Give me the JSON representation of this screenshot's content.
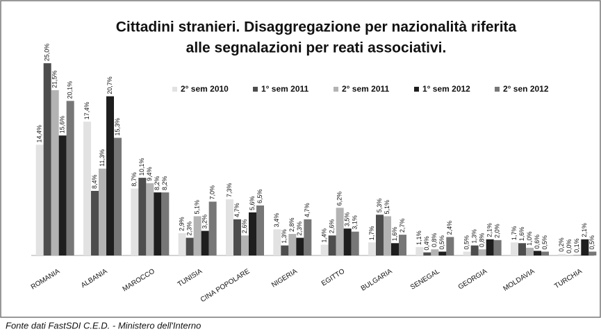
{
  "chart_data": {
    "type": "bar",
    "title": [
      "Cittadini stranieri. Disaggregazione per nazionalità riferita",
      "alle segnalazioni per reati associativi."
    ],
    "categories": [
      "ROMANIA",
      "ALBANIA",
      "MAROCCO",
      "TUNISIA",
      "CINA POPOLARE",
      "NIGERIA",
      "EGITTO",
      "BULGARIA",
      "SENEGAL",
      "GEORGIA",
      "MOLDAVIA",
      "TURCHIA"
    ],
    "series": [
      {
        "name": "2° sem 2010",
        "color": "#e2e2e2",
        "values": [
          14.4,
          17.4,
          8.7,
          2.9,
          7.3,
          3.4,
          1.4,
          1.7,
          1.1,
          0.5,
          1.7,
          0.2
        ],
        "value_labels": [
          "14,4%",
          "17,4%",
          "8,7%",
          "2,9%",
          "7,3%",
          "3,4%",
          "1,4%",
          "1,7%",
          "1,1%",
          "0,5%",
          "1,7%",
          "0,2%"
        ]
      },
      {
        "name": "1° sem 2011",
        "color": "#4d4d4d",
        "values": [
          25.0,
          8.4,
          10.1,
          2.3,
          4.7,
          1.3,
          2.6,
          5.3,
          0.4,
          1.3,
          1.6,
          0.0
        ],
        "value_labels": [
          "25,0%",
          "8,4%",
          "10,1%",
          "2,3%",
          "4,7%",
          "1,3%",
          "2,6%",
          "5,3%",
          "0,4%",
          "1,3%",
          "1,6%",
          "0,0%"
        ]
      },
      {
        "name": "2° sem 2011",
        "color": "#b3b3b3",
        "values": [
          21.5,
          11.3,
          9.4,
          5.1,
          2.6,
          2.8,
          6.2,
          5.1,
          0.8,
          0.8,
          1.0,
          0.1
        ],
        "value_labels": [
          "21,5%",
          "11,3%",
          "9,4%",
          "5,1%",
          "2,6%",
          "2,8%",
          "6,2%",
          "5,1%",
          "0,8%",
          "0,8%",
          "1,0%",
          "0,1%"
        ]
      },
      {
        "name": "1° sem 2012",
        "color": "#1e1e1e",
        "values": [
          15.6,
          20.7,
          8.2,
          3.2,
          5.6,
          2.3,
          3.5,
          1.6,
          0.5,
          2.1,
          0.6,
          2.1
        ],
        "value_labels": [
          "15,6%",
          "20,7%",
          "8,2%",
          "3,2%",
          "5,6%",
          "2,3%",
          "3,5%",
          "1,6%",
          "0,5%",
          "2,1%",
          "0,6%",
          "2,1%"
        ]
      },
      {
        "name": "2° sen 2012",
        "color": "#777777",
        "values": [
          20.1,
          15.3,
          8.2,
          7.0,
          6.5,
          4.7,
          3.1,
          2.7,
          2.4,
          2.0,
          0.5,
          0.5
        ],
        "value_labels": [
          "20,1%",
          "15,3%",
          "8,2%",
          "7,0%",
          "6,5%",
          "4,7%",
          "3,1%",
          "2,7%",
          "2,4%",
          "2,0%",
          "0,5%",
          "0,5%"
        ]
      }
    ],
    "ylim": [
      0,
      26
    ],
    "source": "Fonte dati FastSDI C.E.D. - Ministero dell'Interno"
  }
}
